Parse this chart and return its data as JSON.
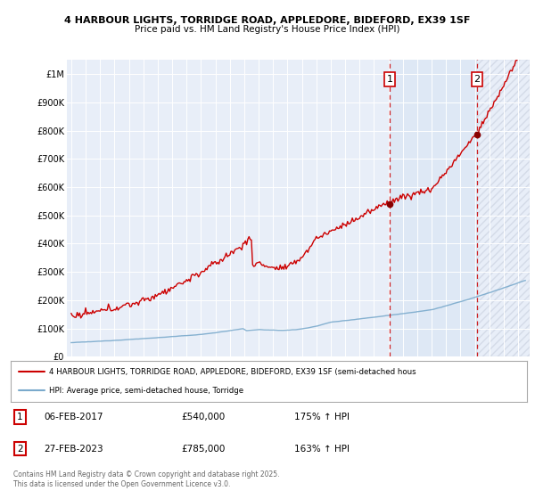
{
  "title_line1": "4 HARBOUR LIGHTS, TORRIDGE ROAD, APPLEDORE, BIDEFORD, EX39 1SF",
  "title_line2": "Price paid vs. HM Land Registry's House Price Index (HPI)",
  "background_color": "#e8eef8",
  "plot_bg_color": "#e8eef8",
  "red_color": "#cc0000",
  "blue_color": "#7aaacc",
  "dashed_color": "#cc0000",
  "shade_color": "#ccdaee",
  "ylim": [
    0,
    1050000
  ],
  "yticks": [
    0,
    100000,
    200000,
    300000,
    400000,
    500000,
    600000,
    700000,
    800000,
    900000,
    1000000
  ],
  "ytick_labels": [
    "£0",
    "£100K",
    "£200K",
    "£300K",
    "£400K",
    "£500K",
    "£600K",
    "£700K",
    "£800K",
    "£900K",
    "£1M"
  ],
  "xlim_start": 1994.7,
  "xlim_end": 2026.8,
  "sale1_x": 2017.09,
  "sale1_y": 540000,
  "sale1_label": "1",
  "sale2_x": 2023.16,
  "sale2_y": 785000,
  "sale2_label": "2",
  "legend_line1": "4 HARBOUR LIGHTS, TORRIDGE ROAD, APPLEDORE, BIDEFORD, EX39 1SF (semi-detached hous",
  "legend_line2": "HPI: Average price, semi-detached house, Torridge",
  "annotation1_date": "06-FEB-2017",
  "annotation1_price": "£540,000",
  "annotation1_hpi": "175% ↑ HPI",
  "annotation2_date": "27-FEB-2023",
  "annotation2_price": "£785,000",
  "annotation2_hpi": "163% ↑ HPI",
  "footnote": "Contains HM Land Registry data © Crown copyright and database right 2025.\nThis data is licensed under the Open Government Licence v3.0."
}
